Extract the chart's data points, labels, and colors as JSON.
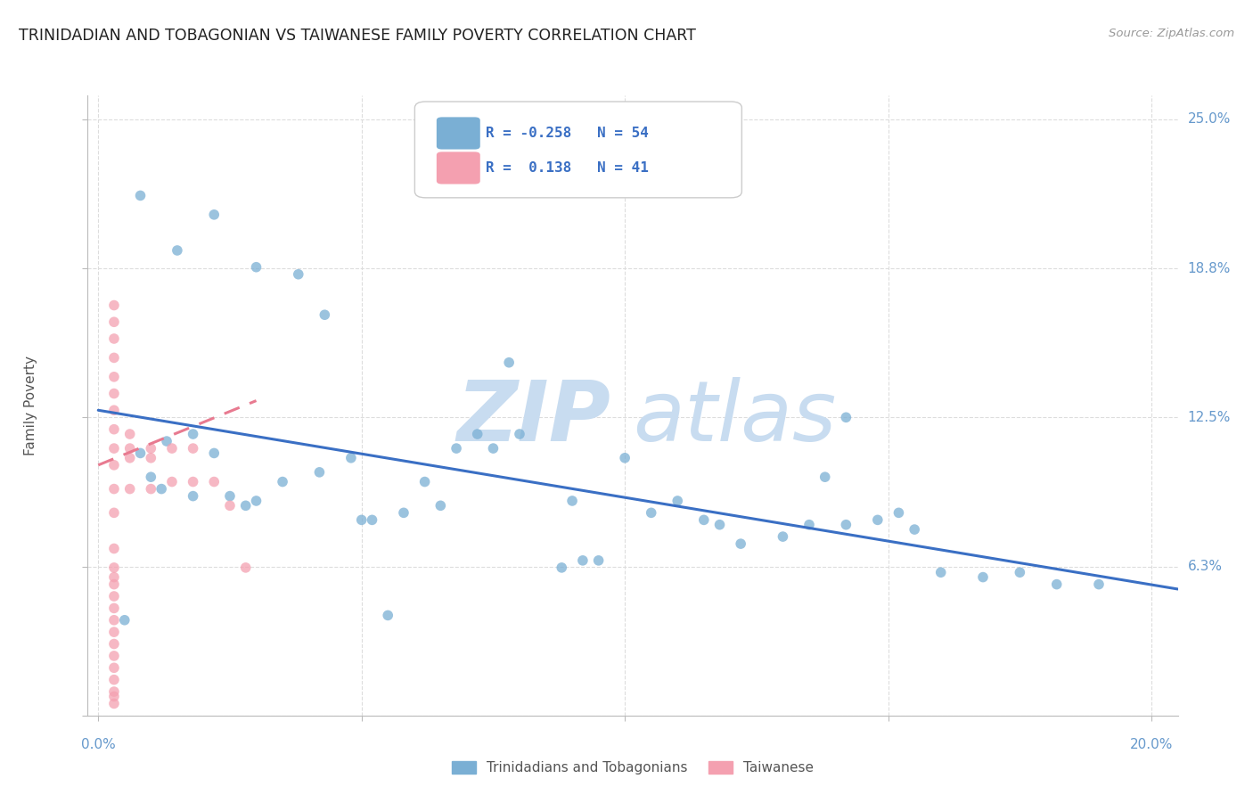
{
  "title": "TRINIDADIAN AND TOBAGONIAN VS TAIWANESE FAMILY POVERTY CORRELATION CHART",
  "source": "Source: ZipAtlas.com",
  "ylabel_label": "Family Poverty",
  "x_ticks": [
    0.0,
    0.05,
    0.1,
    0.15,
    0.2
  ],
  "x_tick_labels": [
    "0.0%",
    "",
    "",
    "",
    "20.0%"
  ],
  "y_ticks": [
    0.0,
    0.0625,
    0.125,
    0.1875,
    0.25
  ],
  "y_tick_labels": [
    "",
    "6.3%",
    "12.5%",
    "18.8%",
    "25.0%"
  ],
  "xlim": [
    -0.002,
    0.205
  ],
  "ylim": [
    0.0,
    0.26
  ],
  "legend_r1": "R = -0.258",
  "legend_n1": "N = 54",
  "legend_r2": "R =  0.138",
  "legend_n2": "N = 41",
  "blue_color": "#7AAFD4",
  "pink_color": "#F4A0B0",
  "blue_line_color": "#3A6FC4",
  "pink_line_color": "#E87A90",
  "watermark_zip": "ZIP",
  "watermark_atlas": "atlas",
  "watermark_color": "#C8DCF0",
  "background_color": "#FFFFFF",
  "grid_color": "#DDDDDD",
  "tick_color": "#6699CC",
  "title_color": "#222222",
  "blue_scatter_x": [
    0.008,
    0.018,
    0.013,
    0.005,
    0.012,
    0.01,
    0.022,
    0.018,
    0.025,
    0.03,
    0.028,
    0.035,
    0.042,
    0.048,
    0.052,
    0.05,
    0.058,
    0.065,
    0.072,
    0.068,
    0.038,
    0.03,
    0.022,
    0.015,
    0.008,
    0.08,
    0.075,
    0.09,
    0.095,
    0.1,
    0.105,
    0.11,
    0.118,
    0.122,
    0.13,
    0.135,
    0.138,
    0.142,
    0.148,
    0.152,
    0.155,
    0.16,
    0.168,
    0.175,
    0.182,
    0.19,
    0.142,
    0.115,
    0.088,
    0.062,
    0.055,
    0.078,
    0.092,
    0.043
  ],
  "blue_scatter_y": [
    0.11,
    0.118,
    0.115,
    0.04,
    0.095,
    0.1,
    0.11,
    0.092,
    0.092,
    0.09,
    0.088,
    0.098,
    0.102,
    0.108,
    0.082,
    0.082,
    0.085,
    0.088,
    0.118,
    0.112,
    0.185,
    0.188,
    0.21,
    0.195,
    0.218,
    0.118,
    0.112,
    0.09,
    0.065,
    0.108,
    0.085,
    0.09,
    0.08,
    0.072,
    0.075,
    0.08,
    0.1,
    0.08,
    0.082,
    0.085,
    0.078,
    0.06,
    0.058,
    0.06,
    0.055,
    0.055,
    0.125,
    0.082,
    0.062,
    0.098,
    0.042,
    0.148,
    0.065,
    0.168
  ],
  "pink_scatter_x": [
    0.003,
    0.003,
    0.003,
    0.003,
    0.003,
    0.003,
    0.003,
    0.003,
    0.003,
    0.003,
    0.003,
    0.003,
    0.003,
    0.003,
    0.003,
    0.006,
    0.006,
    0.006,
    0.006,
    0.01,
    0.01,
    0.01,
    0.014,
    0.014,
    0.018,
    0.018,
    0.022,
    0.025,
    0.028,
    0.003,
    0.003,
    0.003,
    0.003,
    0.003,
    0.003,
    0.003,
    0.003,
    0.003,
    0.003,
    0.003,
    0.003
  ],
  "pink_scatter_y": [
    0.172,
    0.165,
    0.158,
    0.15,
    0.142,
    0.135,
    0.128,
    0.12,
    0.112,
    0.105,
    0.095,
    0.085,
    0.07,
    0.062,
    0.058,
    0.118,
    0.112,
    0.108,
    0.095,
    0.112,
    0.108,
    0.095,
    0.112,
    0.098,
    0.112,
    0.098,
    0.098,
    0.088,
    0.062,
    0.055,
    0.05,
    0.045,
    0.04,
    0.035,
    0.03,
    0.025,
    0.02,
    0.015,
    0.01,
    0.008,
    0.005
  ],
  "blue_trendline_x": [
    0.0,
    0.205
  ],
  "blue_trendline_y": [
    0.128,
    0.053
  ],
  "pink_trendline_x": [
    0.0,
    0.03
  ],
  "pink_trendline_y": [
    0.105,
    0.132
  ],
  "marker_size": 70
}
